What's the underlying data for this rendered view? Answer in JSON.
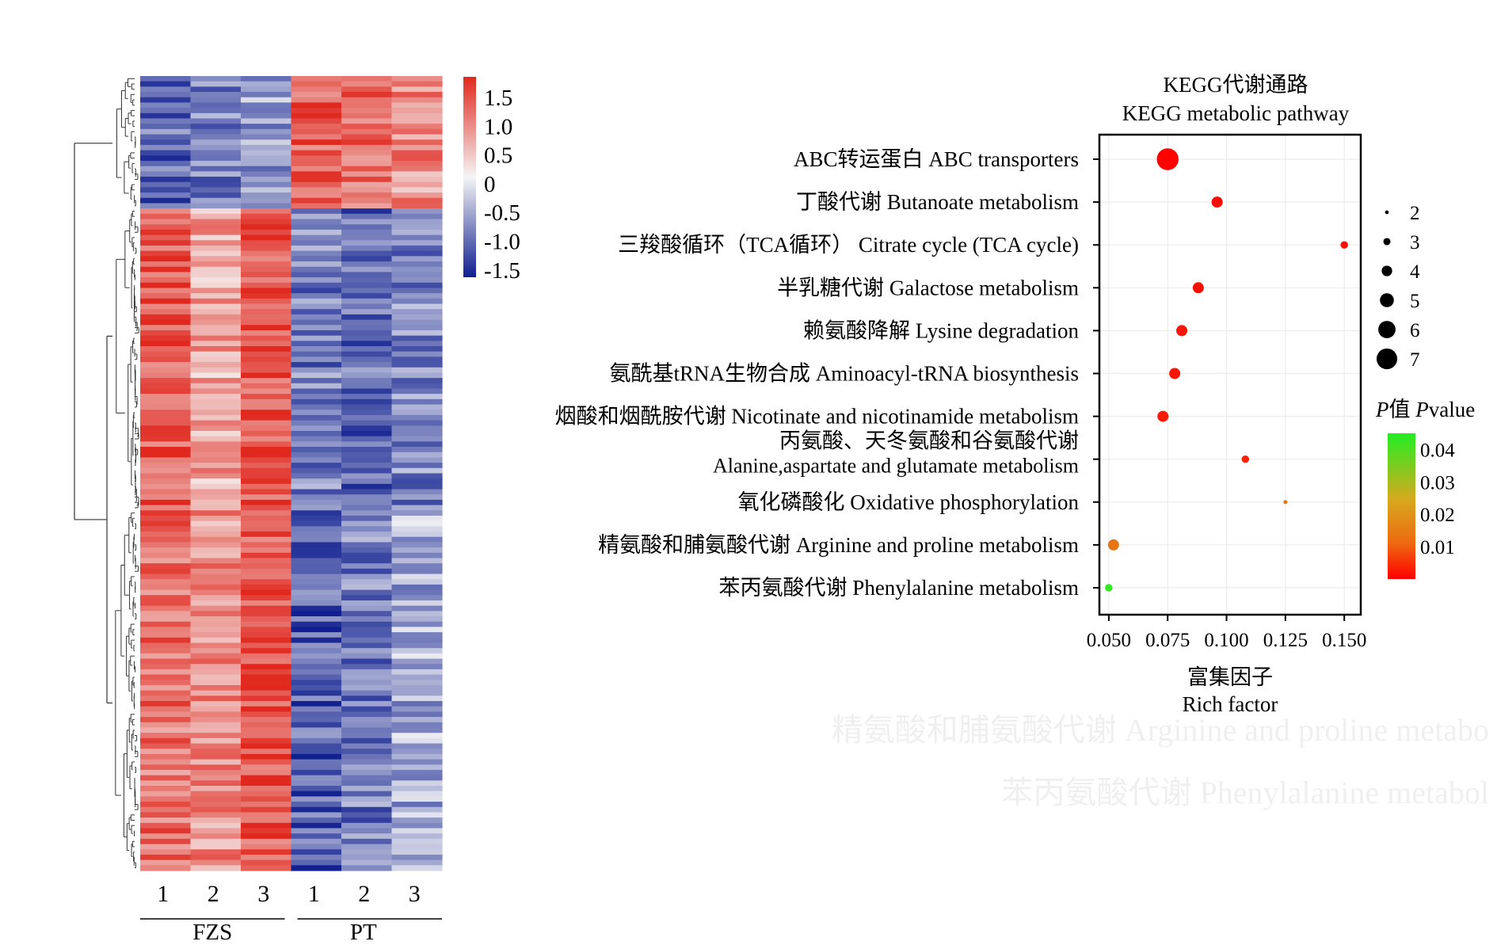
{
  "chart_data": [
    {
      "type": "heatmap",
      "groups": [
        "FZS",
        "PT"
      ],
      "columns": [
        "1",
        "2",
        "3",
        "1",
        "2",
        "3"
      ],
      "colorbar": {
        "ticks": [
          "1.5",
          "1.0",
          "0.5",
          "0",
          "-0.5",
          "-1.0",
          "-1.5"
        ],
        "range": [
          -1.8,
          1.8
        ],
        "low_color": "#0f1f8f",
        "mid_color": "#f5f5f5",
        "high_color": "#e0281e"
      },
      "row_count": 150,
      "blocks": [
        {
          "rows": 25,
          "column_levels": [
            -1.15,
            -0.95,
            -0.7,
            1.35,
            1.2,
            0.9
          ]
        },
        {
          "rows": 57,
          "column_levels": [
            1.4,
            0.7,
            1.45,
            -1.0,
            -1.15,
            -0.9
          ]
        },
        {
          "rows": 68,
          "column_levels": [
            1.15,
            0.9,
            1.4,
            -1.25,
            -1.0,
            -0.6
          ]
        }
      ],
      "tree_clusters": [
        25,
        57,
        68
      ]
    },
    {
      "type": "scatter",
      "title": [
        "KEGG代谢通路",
        "KEGG metabolic pathway"
      ],
      "xlabel": [
        "富集因子",
        "Rich factor"
      ],
      "xlim": [
        0.046,
        0.157
      ],
      "xticks": [
        "0.050",
        "0.075",
        "0.100",
        "0.125",
        "0.150"
      ],
      "xtick_values": [
        0.05,
        0.075,
        0.1,
        0.125,
        0.15
      ],
      "size_legend": {
        "labels": [
          "2",
          "3",
          "4",
          "5",
          "6",
          "7"
        ],
        "values": [
          2,
          3,
          4,
          5,
          6,
          7
        ]
      },
      "color_legend": {
        "title_parts": [
          "P",
          "值 ",
          "P",
          "value"
        ],
        "labels": [
          "0.04",
          "0.03",
          "0.02",
          "0.01"
        ],
        "values": [
          0.04,
          0.03,
          0.02,
          0.01
        ],
        "range": [
          0.0,
          0.045
        ],
        "low_color": "#ff0000",
        "high_color": "#22ee22"
      },
      "pathways": [
        {
          "zh": "ABC转运蛋白",
          "en": "ABC transporters",
          "rich_factor": 0.075,
          "count": 7,
          "p": 0.0003
        },
        {
          "zh": "丁酸代谢",
          "en": "Butanoate metabolism",
          "rich_factor": 0.096,
          "count": 4,
          "p": 0.002
        },
        {
          "zh": "三羧酸循环（TCA循环）",
          "en": "Citrate cycle (TCA cycle)",
          "rich_factor": 0.15,
          "count": 3,
          "p": 0.003
        },
        {
          "zh": "半乳糖代谢",
          "en": "Galactose metabolism",
          "rich_factor": 0.088,
          "count": 4,
          "p": 0.003
        },
        {
          "zh": "赖氨酸降解",
          "en": "Lysine degradation",
          "rich_factor": 0.081,
          "count": 4,
          "p": 0.004
        },
        {
          "zh": "氨酰基tRNA生物合成",
          "en": "Aminoacyl-tRNA biosynthesis",
          "rich_factor": 0.078,
          "count": 4,
          "p": 0.004
        },
        {
          "zh": "烟酸和烟酰胺代谢",
          "en": "Nicotinate and nicotinamide metabolism",
          "rich_factor": 0.073,
          "count": 4,
          "p": 0.005
        },
        {
          "zh": "丙氨酸、天冬氨酸和谷氨酸代谢",
          "en": "Alanine,aspartate and glutamate metabolism",
          "rich_factor": 0.108,
          "count": 3,
          "p": 0.006
        },
        {
          "zh": "氧化磷酸化",
          "en": "Oxidative phosphorylation",
          "rich_factor": 0.125,
          "count": 2,
          "p": 0.022
        },
        {
          "zh": "精氨酸和脯氨酸代谢",
          "en": "Arginine and proline metabolism",
          "rich_factor": 0.052,
          "count": 4,
          "p": 0.022
        },
        {
          "zh": "苯丙氨酸代谢",
          "en": "Phenylalanine metabolism",
          "rich_factor": 0.05,
          "count": 3,
          "p": 0.043
        }
      ],
      "faded_text": [
        "精氨酸和脯氨酸代谢 Arginine and proline metabo",
        "苯丙氨酸代谢 Phenylalanine metabol"
      ]
    }
  ]
}
